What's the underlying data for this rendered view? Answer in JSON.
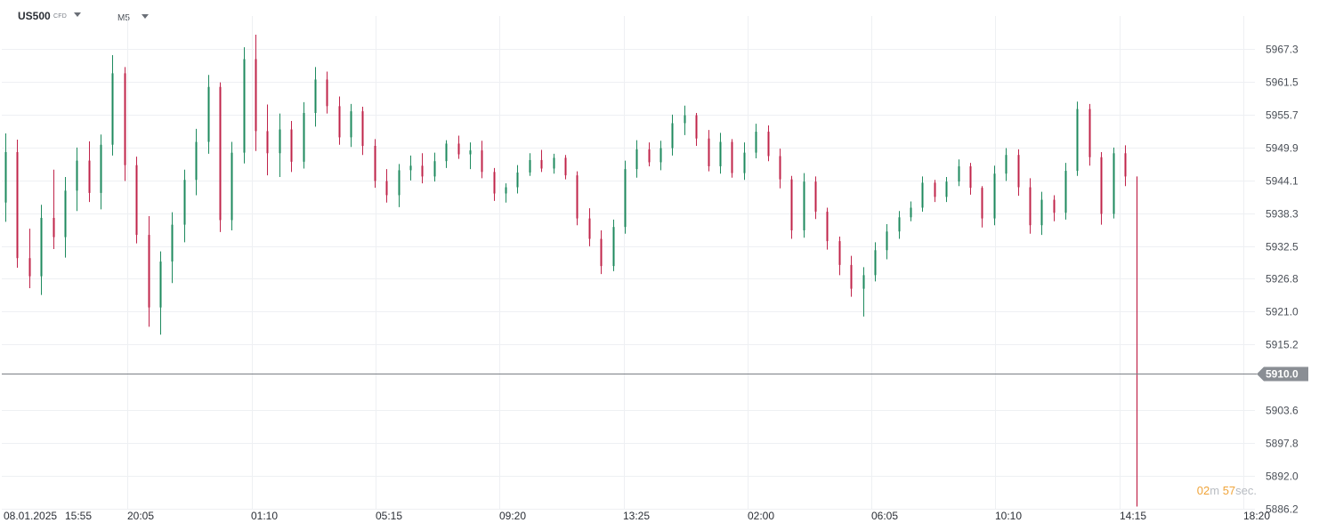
{
  "header": {
    "symbol": "US500",
    "symbol_type": "CFD",
    "timeframe": "M5"
  },
  "timer": {
    "minutes": "02",
    "minutes_unit": "m",
    "seconds": "57",
    "seconds_unit": "sec."
  },
  "colors": {
    "up": "#1e8a5e",
    "down": "#c0244a",
    "grid": "#eef0f3",
    "price_line": "#7b7f85",
    "price_tag": "#8a8e94"
  },
  "chart_data": {
    "type": "candlestick",
    "symbol": "US500",
    "timeframe": "M5",
    "ylim": [
      5886.2,
      5973.1
    ],
    "y_ticks": [
      "5967.3",
      "5961.5",
      "5955.7",
      "5949.9",
      "5944.1",
      "5938.3",
      "5932.5",
      "5926.8",
      "5921.0",
      "5915.2",
      "5903.6",
      "5897.8",
      "5892.0",
      "5886.2"
    ],
    "x_ticks": [
      "08.01.2025",
      "15:55",
      "20:05",
      "01:10",
      "05:15",
      "09:20",
      "13:25",
      "02:00",
      "06:05",
      "10:10",
      "14:15",
      "18:20"
    ],
    "current_price": "5910.0",
    "grid": true,
    "candles": [
      [
        5940.2,
        5952.4,
        5936.8,
        5949.1
      ],
      [
        5949.1,
        5951.3,
        5928.7,
        5930.4
      ],
      [
        5930.4,
        5935.6,
        5925.1,
        5927.2
      ],
      [
        5927.2,
        5939.8,
        5923.9,
        5937.5
      ],
      [
        5937.5,
        5946.0,
        5932.0,
        5934.1
      ],
      [
        5934.1,
        5944.7,
        5930.5,
        5942.3
      ],
      [
        5942.3,
        5949.9,
        5938.7,
        5947.6
      ],
      [
        5947.6,
        5951.0,
        5940.3,
        5941.9
      ],
      [
        5941.9,
        5952.2,
        5939.0,
        5950.4
      ],
      [
        5950.4,
        5966.2,
        5948.5,
        5963.0
      ],
      [
        5963.0,
        5964.1,
        5944.0,
        5946.8
      ],
      [
        5946.8,
        5948.3,
        5933.0,
        5934.5
      ],
      [
        5934.5,
        5937.8,
        5918.3,
        5921.7
      ],
      [
        5921.7,
        5931.6,
        5916.9,
        5929.8
      ],
      [
        5929.8,
        5938.5,
        5926.0,
        5936.3
      ],
      [
        5936.3,
        5946.0,
        5933.2,
        5944.2
      ],
      [
        5944.2,
        5953.2,
        5941.5,
        5950.9
      ],
      [
        5950.9,
        5962.7,
        5948.8,
        5960.6
      ],
      [
        5960.6,
        5961.4,
        5935.0,
        5937.1
      ],
      [
        5937.1,
        5950.9,
        5935.3,
        5949.0
      ],
      [
        5949.0,
        5967.6,
        5947.1,
        5965.5
      ],
      [
        5965.5,
        5969.8,
        5949.3,
        5952.8
      ],
      [
        5952.8,
        5957.5,
        5945.0,
        5948.9
      ],
      [
        5948.9,
        5955.9,
        5944.7,
        5953.1
      ],
      [
        5953.1,
        5954.6,
        5945.6,
        5947.4
      ],
      [
        5947.4,
        5957.9,
        5946.2,
        5956.0
      ],
      [
        5956.0,
        5964.1,
        5953.6,
        5961.9
      ],
      [
        5961.9,
        5963.3,
        5955.9,
        5957.2
      ],
      [
        5957.2,
        5958.9,
        5950.4,
        5951.7
      ],
      [
        5951.7,
        5957.6,
        5950.0,
        5956.3
      ],
      [
        5956.3,
        5957.1,
        5948.6,
        5950.2
      ],
      [
        5950.2,
        5951.4,
        5942.8,
        5944.0
      ],
      [
        5944.0,
        5946.1,
        5940.2,
        5941.5
      ],
      [
        5941.5,
        5947.0,
        5939.4,
        5945.9
      ],
      [
        5945.9,
        5948.5,
        5944.1,
        5946.7
      ],
      [
        5946.7,
        5948.9,
        5943.6,
        5944.8
      ],
      [
        5944.8,
        5949.0,
        5943.9,
        5947.5
      ],
      [
        5947.5,
        5951.2,
        5946.3,
        5950.6
      ],
      [
        5950.6,
        5952.0,
        5947.9,
        5948.7
      ],
      [
        5948.7,
        5950.8,
        5946.1,
        5949.4
      ],
      [
        5949.4,
        5951.1,
        5944.5,
        5945.6
      ],
      [
        5945.6,
        5946.3,
        5940.5,
        5941.8
      ],
      [
        5941.8,
        5943.6,
        5940.2,
        5942.9
      ],
      [
        5942.9,
        5946.8,
        5941.8,
        5945.5
      ],
      [
        5945.5,
        5948.9,
        5944.9,
        5947.7
      ],
      [
        5947.7,
        5949.5,
        5945.6,
        5946.2
      ],
      [
        5946.2,
        5948.8,
        5945.3,
        5948.1
      ],
      [
        5948.1,
        5948.6,
        5944.3,
        5945.0
      ],
      [
        5945.0,
        5945.7,
        5936.2,
        5937.4
      ],
      [
        5937.4,
        5939.2,
        5932.5,
        5933.8
      ],
      [
        5933.8,
        5935.3,
        5927.6,
        5929.0
      ],
      [
        5929.0,
        5937.2,
        5928.1,
        5935.9
      ],
      [
        5935.9,
        5947.6,
        5934.7,
        5946.1
      ],
      [
        5946.1,
        5951.2,
        5944.6,
        5949.6
      ],
      [
        5949.6,
        5950.8,
        5946.6,
        5947.3
      ],
      [
        5947.3,
        5951.1,
        5945.9,
        5949.8
      ],
      [
        5949.8,
        5955.7,
        5948.5,
        5954.2
      ],
      [
        5954.2,
        5957.3,
        5952.1,
        5955.6
      ],
      [
        5955.6,
        5956.0,
        5950.2,
        5951.5
      ],
      [
        5951.5,
        5953.0,
        5945.7,
        5946.6
      ],
      [
        5946.6,
        5952.5,
        5945.3,
        5950.9
      ],
      [
        5950.9,
        5951.4,
        5944.6,
        5945.4
      ],
      [
        5945.4,
        5950.8,
        5944.2,
        5949.0
      ],
      [
        5949.0,
        5954.1,
        5948.0,
        5952.7
      ],
      [
        5952.7,
        5953.8,
        5947.5,
        5948.4
      ],
      [
        5948.4,
        5949.7,
        5942.7,
        5944.3
      ],
      [
        5944.3,
        5944.9,
        5933.8,
        5935.3
      ],
      [
        5935.3,
        5945.4,
        5934.0,
        5943.9
      ],
      [
        5943.9,
        5944.8,
        5937.3,
        5938.6
      ],
      [
        5938.6,
        5939.3,
        5931.9,
        5933.4
      ],
      [
        5933.4,
        5934.2,
        5927.4,
        5929.2
      ],
      [
        5929.2,
        5930.8,
        5923.6,
        5925.0
      ],
      [
        5925.0,
        5928.8,
        5920.1,
        5927.4
      ],
      [
        5927.4,
        5933.2,
        5926.3,
        5931.8
      ],
      [
        5931.8,
        5936.4,
        5930.2,
        5935.1
      ],
      [
        5935.1,
        5938.7,
        5933.8,
        5937.6
      ],
      [
        5937.6,
        5940.4,
        5936.9,
        5939.3
      ],
      [
        5939.3,
        5944.8,
        5938.6,
        5943.7
      ],
      [
        5943.7,
        5944.2,
        5940.3,
        5941.2
      ],
      [
        5941.2,
        5944.7,
        5940.3,
        5943.9
      ],
      [
        5943.9,
        5947.8,
        5943.1,
        5946.6
      ],
      [
        5946.6,
        5947.2,
        5941.6,
        5942.8
      ],
      [
        5942.8,
        5943.1,
        5935.8,
        5937.4
      ],
      [
        5937.4,
        5946.7,
        5936.2,
        5945.3
      ],
      [
        5945.3,
        5949.8,
        5944.0,
        5948.6
      ],
      [
        5948.6,
        5949.6,
        5941.4,
        5942.9
      ],
      [
        5942.9,
        5944.5,
        5934.7,
        5936.2
      ],
      [
        5936.2,
        5942.1,
        5934.5,
        5940.7
      ],
      [
        5940.7,
        5941.5,
        5936.9,
        5938.4
      ],
      [
        5938.4,
        5947.2,
        5937.2,
        5945.8
      ],
      [
        5945.8,
        5958.0,
        5944.9,
        5956.7
      ],
      [
        5956.7,
        5957.6,
        5946.7,
        5948.2
      ],
      [
        5948.2,
        5949.1,
        5936.3,
        5938.2
      ],
      [
        5938.2,
        5949.9,
        5937.4,
        5948.9
      ],
      [
        5948.9,
        5950.3,
        5943.1,
        5944.8
      ]
    ]
  }
}
